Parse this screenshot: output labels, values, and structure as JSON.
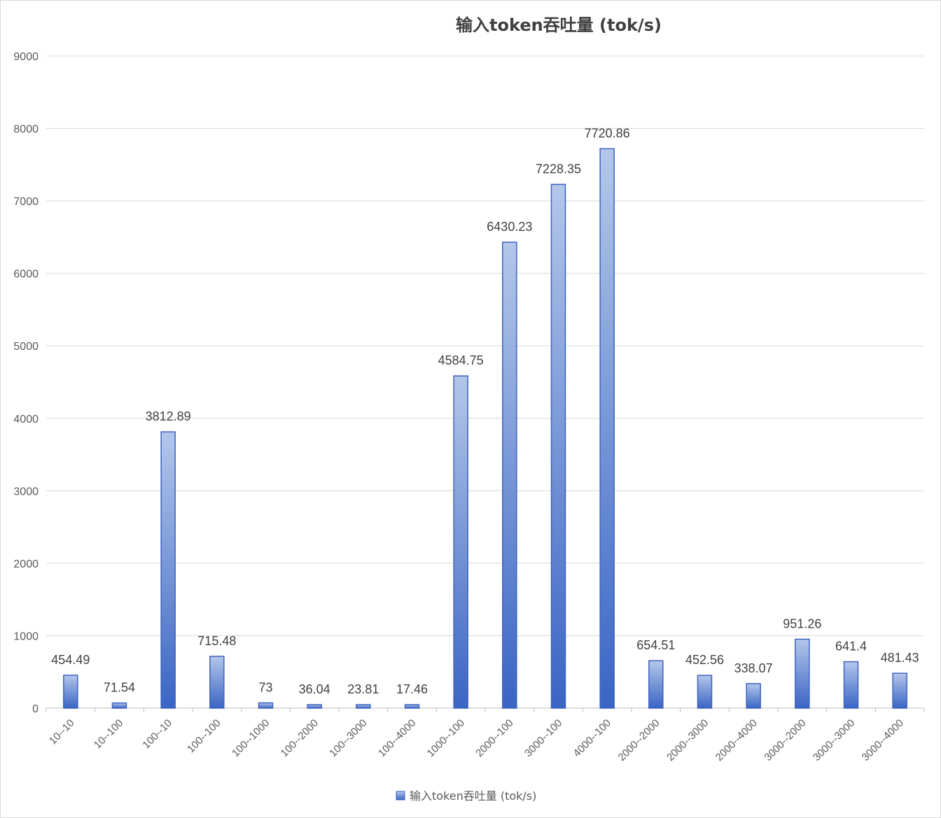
{
  "chart_data": {
    "type": "bar",
    "title": "输入token吞吐量 (tok/s)",
    "xlabel": "",
    "ylabel": "",
    "ylim": [
      0,
      9000
    ],
    "yticks": [
      "0",
      "1000",
      "2000",
      "3000",
      "4000",
      "5000",
      "6000",
      "7000",
      "8000",
      "9000"
    ],
    "grid": true,
    "legend_position": "bottom",
    "categories": [
      "10--10",
      "10--100",
      "100--10",
      "100--100",
      "100--1000",
      "100--2000",
      "100--3000",
      "100--4000",
      "1000--100",
      "2000--100",
      "3000--100",
      "4000--100",
      "2000--2000",
      "2000--3000",
      "2000--4000",
      "3000--2000",
      "3000--3000",
      "3000--4000"
    ],
    "series": [
      {
        "name": "输入token吞吐量 (tok/s)",
        "values": [
          454.49,
          71.54,
          3812.89,
          715.48,
          73,
          36.04,
          23.81,
          17.46,
          4584.75,
          6430.23,
          7228.35,
          7720.86,
          654.51,
          452.56,
          338.07,
          951.26,
          641.4,
          481.43
        ],
        "labels": [
          "454.49",
          "71.54",
          "3812.89",
          "715.48",
          "73",
          "36.04",
          "23.81",
          "17.46",
          "4584.75",
          "6430.23",
          "7228.35",
          "7720.86",
          "654.51",
          "452.56",
          "338.07",
          "951.26",
          "641.4",
          "481.43"
        ]
      }
    ],
    "colors": {
      "bar_light": "#b4c7ea",
      "bar_dark": "#3a65c4",
      "bar_border": "#3d62c0",
      "grid": "#d9d9d9",
      "axis": "#bfbfbf"
    }
  }
}
